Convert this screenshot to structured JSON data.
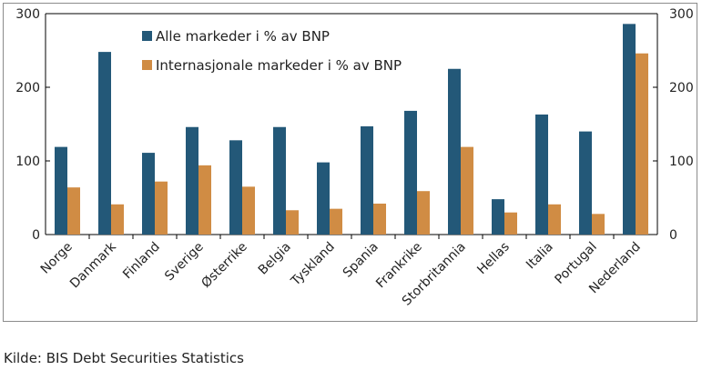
{
  "chart_data": {
    "type": "bar",
    "categories": [
      "Norge",
      "Danmark",
      "Finland",
      "Sverige",
      "Østerrike",
      "Belgia",
      "Tyskland",
      "Spania",
      "Frankrike",
      "Storbritannia",
      "Hellas",
      "Italia",
      "Portugal",
      "Nederland"
    ],
    "series": [
      {
        "name": "Alle markeder i % av BNP",
        "color": "#235878",
        "values": [
          119,
          248,
          111,
          146,
          128,
          146,
          98,
          147,
          168,
          225,
          48,
          163,
          140,
          286
        ]
      },
      {
        "name": "Internasjonale markeder i % av BNP",
        "color": "#d08c44",
        "values": [
          64,
          41,
          72,
          94,
          65,
          33,
          35,
          42,
          59,
          119,
          30,
          41,
          28,
          246
        ]
      }
    ],
    "ylim": [
      0,
      300
    ],
    "yticks": [
      0,
      100,
      200,
      300
    ],
    "ytick_labels": [
      "0",
      "100",
      "200",
      "300"
    ],
    "xlabel": "",
    "ylabel": "",
    "legend": "top-left"
  },
  "source": "Kilde: BIS Debt Securities Statistics"
}
